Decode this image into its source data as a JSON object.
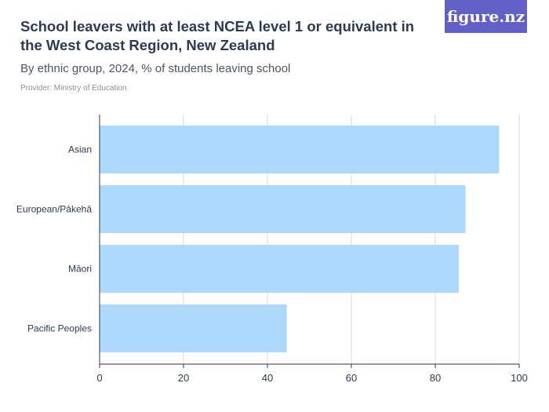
{
  "header": {
    "title": "School leavers with at least NCEA level 1 or equivalent in the West Coast Region, New Zealand",
    "subtitle": "By ethnic group, 2024, % of students leaving school",
    "provider": "Provider: Ministry of Education"
  },
  "brand": {
    "logo_text": "figure.nz",
    "logo_color": "#6160c7"
  },
  "colors": {
    "bar": "#acd8fb",
    "grid": "#d9d9d9",
    "axis": "#2b3a55",
    "label": "#2b3a55"
  },
  "chart_data": {
    "type": "bar",
    "orientation": "horizontal",
    "categories": [
      "Asian",
      "European/Pākehā",
      "Māori",
      "Pacific Peoples"
    ],
    "values": [
      95.2,
      87.2,
      85.6,
      44.6
    ],
    "xlim": [
      0,
      100
    ],
    "xticks": [
      0,
      20,
      40,
      60,
      80,
      100
    ],
    "grid": true
  }
}
